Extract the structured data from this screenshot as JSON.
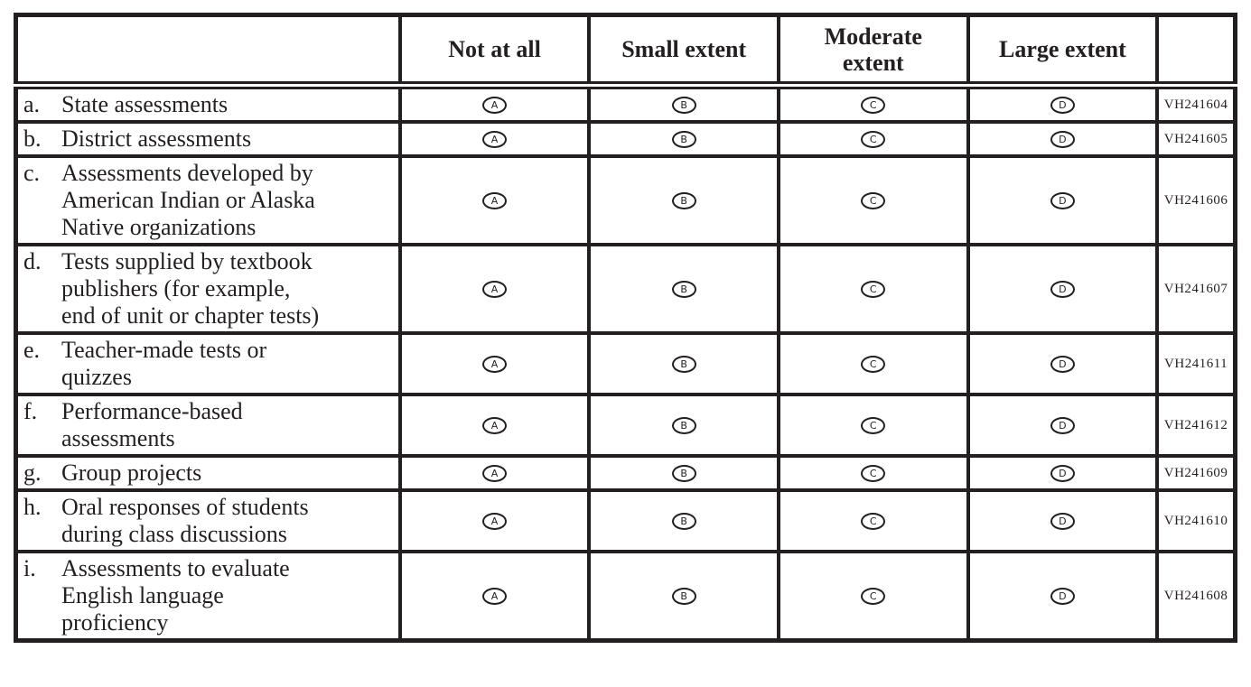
{
  "header": {
    "item_column": "",
    "options": [
      "Not at all",
      "Small extent",
      "Moderate\nextent",
      "Large extent"
    ],
    "code_column": ""
  },
  "options": [
    "A",
    "B",
    "C",
    "D"
  ],
  "rows": [
    {
      "letter": "a.",
      "label": "State assessments",
      "code": "VH241604"
    },
    {
      "letter": "b.",
      "label": "District assessments",
      "code": "VH241605"
    },
    {
      "letter": "c.",
      "label": "Assessments developed by\nAmerican Indian or Alaska\nNative organizations",
      "code": "VH241606"
    },
    {
      "letter": "d.",
      "label": "Tests supplied by textbook\npublishers (for example,\nend of unit or chapter tests)",
      "code": "VH241607"
    },
    {
      "letter": "e.",
      "label": "Teacher-made tests or\nquizzes",
      "code": "VH241611"
    },
    {
      "letter": "f.",
      "label": "Performance-based\nassessments",
      "code": "VH241612"
    },
    {
      "letter": "g.",
      "label": "Group projects",
      "code": "VH241609"
    },
    {
      "letter": "h.",
      "label": "Oral responses of students\nduring class discussions",
      "code": "VH241610"
    },
    {
      "letter": "i.",
      "label": "Assessments to evaluate\nEnglish language\nproficiency",
      "code": "VH241608"
    }
  ],
  "colors": {
    "border": "#231f20",
    "text": "#231f20",
    "background": "#ffffff"
  }
}
